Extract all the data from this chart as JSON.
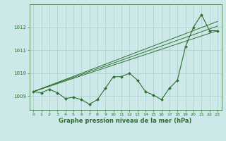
{
  "title": "Graphe pression niveau de la mer (hPa)",
  "bg_color": "#cce8e8",
  "grid_color": "#aacece",
  "line_color": "#2d6e2d",
  "x_min": -0.5,
  "x_max": 23.5,
  "y_min": 1008.4,
  "y_max": 1013.0,
  "yticks": [
    1009,
    1010,
    1011,
    1012
  ],
  "xticks": [
    0,
    1,
    2,
    3,
    4,
    5,
    6,
    7,
    8,
    9,
    10,
    11,
    12,
    13,
    14,
    15,
    16,
    17,
    18,
    19,
    20,
    21,
    22,
    23
  ],
  "line_main": [
    1009.2,
    1009.15,
    1009.3,
    1009.15,
    1008.9,
    1008.95,
    1008.85,
    1008.65,
    1008.85,
    1009.35,
    1009.85,
    1009.85,
    1010.0,
    1009.7,
    1009.2,
    1009.05,
    1008.85,
    1009.35,
    1009.7,
    1011.15,
    1012.0,
    1012.55,
    1011.85,
    1011.85
  ],
  "trend_lines": [
    [
      1009.2,
      1011.85
    ],
    [
      1009.2,
      1012.05
    ],
    [
      1009.2,
      1012.25
    ]
  ],
  "trend_x": [
    0,
    23
  ],
  "xlabel_fontsize": 6,
  "tick_fontsize": 4.5,
  "linewidth": 0.8,
  "marker_size": 2.0
}
